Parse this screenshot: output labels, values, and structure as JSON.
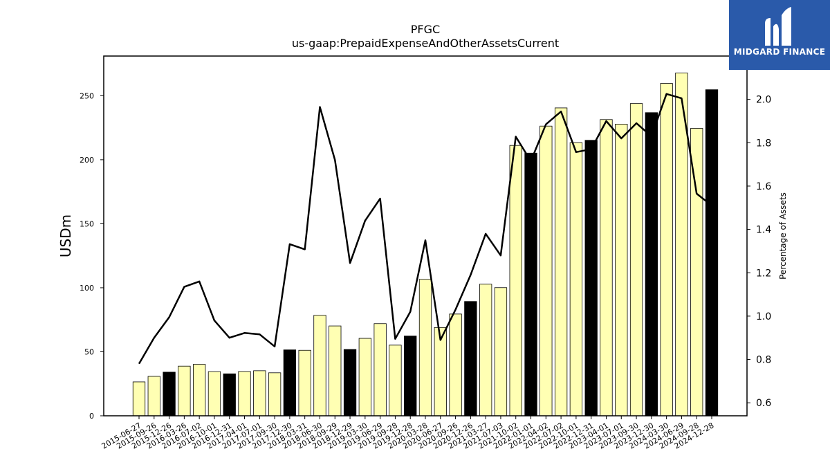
{
  "chart_data": {
    "type": "bar+line",
    "title": "PFGC",
    "subtitle": "us-gaap:PrepaidExpenseAndOtherAssetsCurrent",
    "ylabel_left": "USDm",
    "ylabel_right": "Percentage of Assets",
    "ylim_left": [
      0,
      281
    ],
    "ylim_right": [
      0.54,
      2.2
    ],
    "yticks_left": [
      0,
      50,
      100,
      150,
      200,
      250
    ],
    "yticks_right": [
      0.6,
      0.8,
      1.0,
      1.2,
      1.4,
      1.6,
      1.8,
      2.0
    ],
    "categories": [
      "2015-06-27",
      "2015-09-26",
      "2015-12-26",
      "2016-03-26",
      "2016-07-02",
      "2016-10-01",
      "2016-12-31",
      "2017-04-01",
      "2017-07-01",
      "2017-09-30",
      "2017-12-30",
      "2018-03-31",
      "2018-06-30",
      "2018-09-29",
      "2018-12-29",
      "2019-03-30",
      "2019-06-29",
      "2019-09-28",
      "2019-12-28",
      "2020-03-28",
      "2020-06-27",
      "2020-09-26",
      "2020-12-26",
      "2021-03-27",
      "2021-07-03",
      "2021-10-02",
      "2022-01-01",
      "2022-04-02",
      "2022-07-02",
      "2022-10-01",
      "2022-12-31",
      "2023-04-01",
      "2023-07-01",
      "2023-09-30",
      "2023-12-30",
      "2024-03-30",
      "2024-06-29",
      "2024-09-28",
      "2024-12-28"
    ],
    "bar_series": {
      "name": "USDm",
      "values": [
        26.5,
        30.8,
        34.1,
        38.8,
        40.2,
        34.5,
        32.8,
        34.6,
        35.2,
        33.6,
        51.5,
        51.2,
        78.5,
        70.2,
        51.8,
        60.5,
        72.0,
        55.2,
        62.3,
        106.6,
        69.0,
        79.5,
        89.3,
        102.8,
        100.1,
        211.2,
        205.2,
        226.3,
        240.5,
        213.4,
        215.2,
        231.4,
        227.8,
        243.9,
        236.8,
        259.6,
        267.8,
        224.5,
        254.7
      ],
      "highlight": [
        false,
        false,
        true,
        false,
        false,
        false,
        true,
        false,
        false,
        false,
        true,
        false,
        false,
        false,
        true,
        false,
        false,
        false,
        true,
        false,
        false,
        false,
        true,
        false,
        false,
        false,
        true,
        false,
        false,
        false,
        true,
        false,
        false,
        false,
        true,
        false,
        false,
        false,
        true
      ]
    },
    "line_series": {
      "name": "Percentage of Assets",
      "values": [
        0.78,
        0.9,
        0.995,
        1.135,
        1.16,
        0.98,
        0.9,
        0.922,
        0.916,
        0.86,
        1.332,
        1.308,
        1.965,
        1.72,
        1.245,
        1.44,
        1.542,
        0.895,
        1.02,
        1.35,
        0.89,
        1.03,
        1.19,
        1.38,
        1.28,
        1.828,
        1.715,
        1.885,
        1.944,
        1.757,
        1.77,
        1.9,
        1.82,
        1.89,
        1.83,
        2.025,
        2.005,
        1.565,
        1.51
      ]
    },
    "colors": {
      "bar": "#ffffb3",
      "bar_highlight": "#000000",
      "bar_edge": "#000000",
      "line": "#000000"
    }
  },
  "logo": {
    "text": "MIDGARD FINANCE",
    "color": "#2a5aaa"
  }
}
